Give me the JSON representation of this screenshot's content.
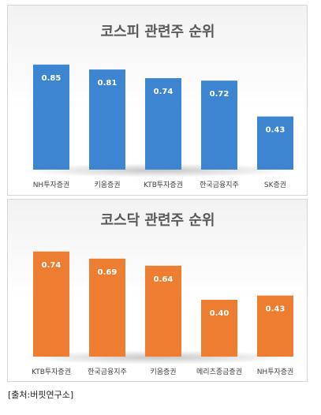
{
  "colors": {
    "kospi_bar": "#3d85d0",
    "kosdaq_bar": "#ed7d31",
    "value_label": "#ffffff"
  },
  "chart_data": [
    {
      "type": "bar",
      "title": "코스피 관련주 순위",
      "categories": [
        "NH투자증권",
        "키움증권",
        "KTB투자증권",
        "한국금융지주",
        "SK증권"
      ],
      "values": [
        0.85,
        0.81,
        0.74,
        0.72,
        0.43
      ],
      "value_labels": [
        "0.85",
        "0.81",
        "0.74",
        "0.72",
        "0.43"
      ],
      "ylim": [
        0,
        0.9
      ],
      "grid": false,
      "legend": "none"
    },
    {
      "type": "bar",
      "title": "코스닥 관련주 순위",
      "categories": [
        "KTB투자증권",
        "한국금융지주",
        "키움증권",
        "메리츠종금증권",
        "NH투자증권"
      ],
      "values": [
        0.74,
        0.69,
        0.64,
        0.4,
        0.43
      ],
      "value_labels": [
        "0.74",
        "0.69",
        "0.64",
        "0.40",
        "0.43"
      ],
      "ylim": [
        0,
        0.8
      ],
      "grid": false,
      "legend": "none"
    }
  ],
  "source": "[출처:버핏연구소]"
}
